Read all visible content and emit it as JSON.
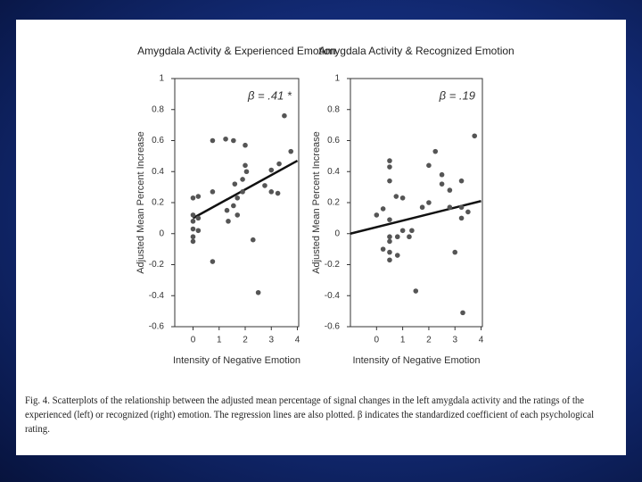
{
  "chart_data": [
    {
      "type": "scatter",
      "title": "Amygdala Activity & Experienced Emotion",
      "x_label": "Intensity of Negative Emotion",
      "y_label": "Adjusted Mean Percent Increase",
      "annotation": "β = .41 *",
      "color": "#555555",
      "x": [
        0,
        0,
        0,
        0,
        0,
        0,
        0.2,
        0.2,
        0.2,
        0.75,
        0.75,
        0.75,
        1.25,
        1.3,
        1.35,
        1.55,
        1.55,
        1.6,
        1.7,
        1.7,
        1.9,
        2.0,
        2.0,
        2.05,
        1.9,
        2.3,
        2.5,
        2.75,
        3,
        3,
        3.25,
        3.3,
        3.5,
        3.75
      ],
      "values": [
        0.23,
        0.12,
        0.08,
        0.03,
        -0.02,
        -0.05,
        0.24,
        0.1,
        0.02,
        0.6,
        -0.18,
        0.27,
        0.61,
        0.15,
        0.08,
        0.6,
        0.18,
        0.32,
        0.23,
        0.12,
        0.35,
        0.57,
        0.44,
        0.4,
        0.27,
        -0.04,
        -0.38,
        0.31,
        0.41,
        0.27,
        0.26,
        0.45,
        0.76,
        0.53
      ],
      "trend": {
        "x": [
          0,
          4
        ],
        "values": [
          0.1,
          0.47
        ]
      },
      "xlim": [
        -0.7,
        4.05
      ],
      "ylim": [
        -0.6,
        1
      ],
      "xticks": [
        0,
        1,
        2,
        3,
        4
      ],
      "yticks": [
        1,
        0.8,
        0.6,
        0.4,
        0.2,
        0,
        -0.2,
        -0.4,
        -0.6
      ]
    },
    {
      "type": "scatter",
      "title": "Amygdala Activity & Recognized Emotion",
      "x_label": "Intensity of Negative Emotion",
      "y_label": "Adjusted Mean Percent Increase",
      "annotation": "β = .19",
      "color": "#555555",
      "x": [
        0,
        0.25,
        0.25,
        0.5,
        0.5,
        0.5,
        0.5,
        0.5,
        0.5,
        0.5,
        0.5,
        0.75,
        0.8,
        0.8,
        1,
        1,
        1.25,
        1.35,
        1.5,
        1.75,
        2,
        2,
        2.25,
        2.5,
        2.5,
        2.8,
        2.8,
        3,
        3.25,
        3.25,
        3.25,
        3.3,
        3.5,
        3.75
      ],
      "values": [
        0.12,
        0.16,
        -0.1,
        0.47,
        0.43,
        0.34,
        0.09,
        -0.02,
        -0.05,
        -0.12,
        -0.17,
        0.24,
        -0.02,
        -0.14,
        0.23,
        0.02,
        -0.02,
        0.02,
        -0.37,
        0.17,
        0.44,
        0.2,
        0.53,
        0.38,
        0.32,
        0.17,
        0.28,
        -0.12,
        0.17,
        0.34,
        0.1,
        -0.51,
        0.14,
        0.63
      ],
      "trend": {
        "x": [
          -1,
          4
        ],
        "values": [
          0,
          0.21
        ]
      },
      "xlim": [
        -1,
        4.05
      ],
      "ylim": [
        -0.6,
        1
      ],
      "xticks": [
        0,
        1,
        2,
        3,
        4
      ],
      "yticks": [
        1,
        0.8,
        0.6,
        0.4,
        0.2,
        0,
        -0.2,
        -0.4,
        -0.6
      ]
    }
  ],
  "caption": "Fig. 4. Scatterplots of the relationship between the adjusted mean percentage of signal changes in the left amygdala activity and the ratings of the experienced (left) or recognized (right) emotion. The regression lines are also plotted. β indicates the standardized coefficient of each psychological rating."
}
